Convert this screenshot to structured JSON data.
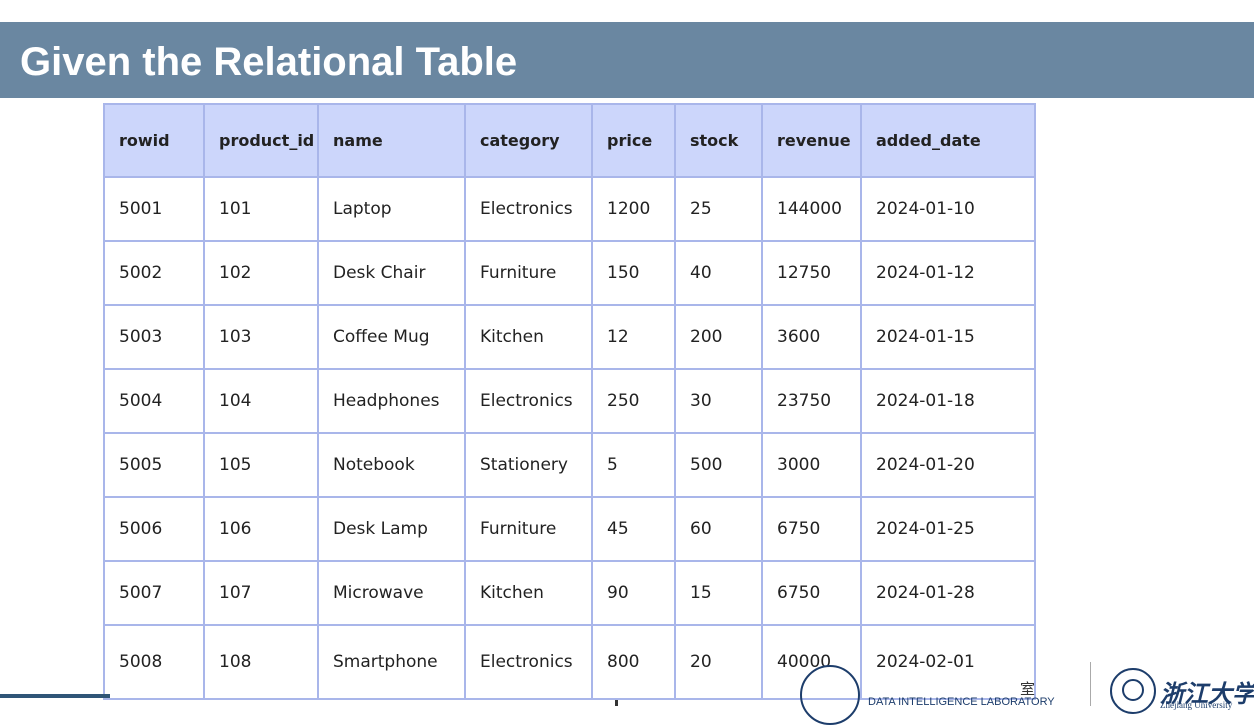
{
  "slide": {
    "title": "Given the Relational Table"
  },
  "table": {
    "headers": [
      "rowid",
      "product_id",
      "name",
      "category",
      "price",
      "stock",
      "revenue",
      "added_date"
    ],
    "rows": [
      [
        "5001",
        "101",
        "Laptop",
        "Electronics",
        "1200",
        "25",
        "144000",
        "2024-01-10"
      ],
      [
        "5002",
        "102",
        "Desk Chair",
        "Furniture",
        "150",
        "40",
        "12750",
        "2024-01-12"
      ],
      [
        "5003",
        "103",
        "Coffee Mug",
        "Kitchen",
        "12",
        "200",
        "3600",
        "2024-01-15"
      ],
      [
        "5004",
        "104",
        "Headphones",
        "Electronics",
        "250",
        "30",
        "23750",
        "2024-01-18"
      ],
      [
        "5005",
        "105",
        "Notebook",
        "Stationery",
        "5",
        "500",
        "3000",
        "2024-01-20"
      ],
      [
        "5006",
        "106",
        "Desk Lamp",
        "Furniture",
        "45",
        "60",
        "6750",
        "2024-01-25"
      ],
      [
        "5007",
        "107",
        "Microwave",
        "Kitchen",
        "90",
        "15",
        "6750",
        "2024-01-28"
      ],
      [
        "5008",
        "108",
        "Smartphone",
        "Electronics",
        "800",
        "20",
        "40000",
        "2024-02-01"
      ]
    ]
  },
  "footer": {
    "lab_name_cn_partial": "室",
    "lab_name_en": "DATA INTELLIGENCE LABORATORY",
    "university_cn": "浙江大学",
    "university_en": "Zhejiang University"
  },
  "colors": {
    "title_bar": "#6a87a1",
    "header_fill": "#ccd6fb",
    "grid_line": "#a9b6ea"
  }
}
